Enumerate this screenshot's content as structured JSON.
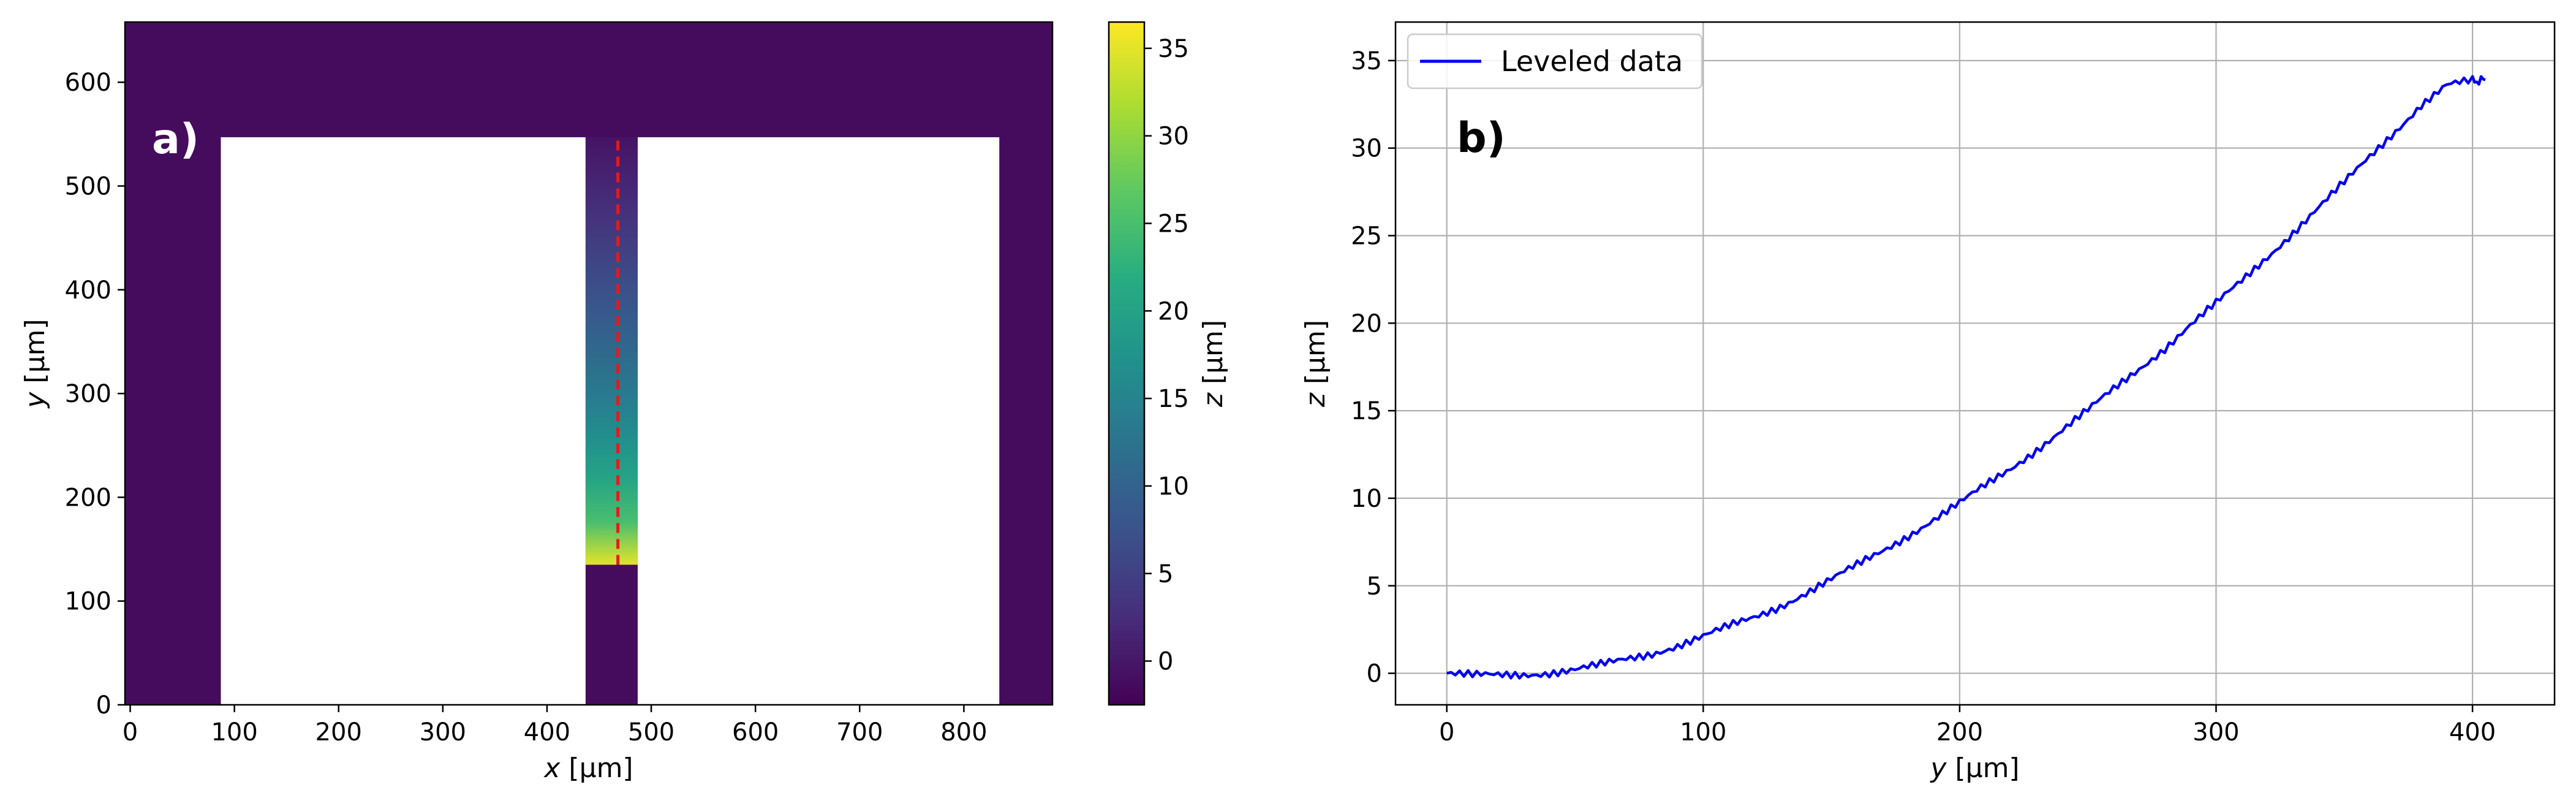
{
  "figure": {
    "title": ""
  },
  "chart_data": [
    {
      "panel_label": "a)",
      "type": "heatmap",
      "title": "",
      "xlabel": {
        "var": "x",
        "unit": " [µm]"
      },
      "ylabel": {
        "var": "y",
        "unit": " [µm]"
      },
      "xlim": [
        -5,
        885
      ],
      "ylim": [
        0,
        658
      ],
      "xticks": [
        0,
        100,
        200,
        300,
        400,
        500,
        600,
        700,
        800
      ],
      "yticks": [
        0,
        100,
        200,
        300,
        400,
        500,
        600
      ],
      "colorbar": {
        "label": {
          "var": "z",
          "unit": " [µm]"
        },
        "range": [
          -2.5,
          36.5
        ],
        "ticks": [
          0,
          5,
          10,
          15,
          20,
          25,
          30,
          35
        ],
        "colormap": "viridis"
      },
      "background_level": -1.2,
      "regions": {
        "frame_xy": [
          [
            -5,
            0
          ],
          [
            885,
            658
          ]
        ],
        "cutout_left_bottom": [
          [
            87,
            0
          ],
          [
            437,
            547
          ]
        ],
        "cutout_right_bottom": [
          [
            487,
            0
          ],
          [
            834,
            547
          ]
        ],
        "channel_x": [
          437,
          487
        ],
        "channel_y": [
          135,
          547
        ]
      },
      "channel_profile": {
        "y_top": 547,
        "y_bottom": 135,
        "z_top": -0.5,
        "z_bottom": 35
      },
      "profile_line": {
        "x": 468,
        "y_range": [
          135,
          545
        ],
        "color": "#e41a1c",
        "style": "dashed"
      }
    },
    {
      "panel_label": "b)",
      "type": "line",
      "title": "",
      "xlabel": {
        "var": "y",
        "unit": " [µm]"
      },
      "ylabel": {
        "var": "z",
        "unit": " [µm]"
      },
      "xlim": [
        -20,
        432
      ],
      "ylim": [
        -1.8,
        37.2
      ],
      "xticks": [
        0,
        100,
        200,
        300,
        400
      ],
      "yticks": [
        0,
        5,
        10,
        15,
        20,
        25,
        30,
        35
      ],
      "grid": true,
      "legend_position": "top-left",
      "series": [
        {
          "name": "Leveled data",
          "color": "#0000ee",
          "x": [
            0,
            10,
            20,
            30,
            40,
            50,
            60,
            70,
            80,
            90,
            100,
            110,
            120,
            130,
            140,
            150,
            160,
            170,
            180,
            190,
            200,
            210,
            220,
            230,
            240,
            250,
            260,
            270,
            280,
            290,
            300,
            310,
            320,
            330,
            340,
            350,
            360,
            370,
            380,
            390,
            400,
            405
          ],
          "y": [
            0,
            -0.15,
            -0.12,
            -0.05,
            0.05,
            0.2,
            0.45,
            0.8,
            1.15,
            1.6,
            2.1,
            2.65,
            3.2,
            3.85,
            4.6,
            5.35,
            6.15,
            7.0,
            7.9,
            8.8,
            9.7,
            10.7,
            11.7,
            12.8,
            13.9,
            15.0,
            16.2,
            17.4,
            18.6,
            19.9,
            21.1,
            22.4,
            23.8,
            25.2,
            26.6,
            28.0,
            29.5,
            31.0,
            32.5,
            33.6,
            33.8,
            33.9
          ]
        }
      ]
    }
  ]
}
